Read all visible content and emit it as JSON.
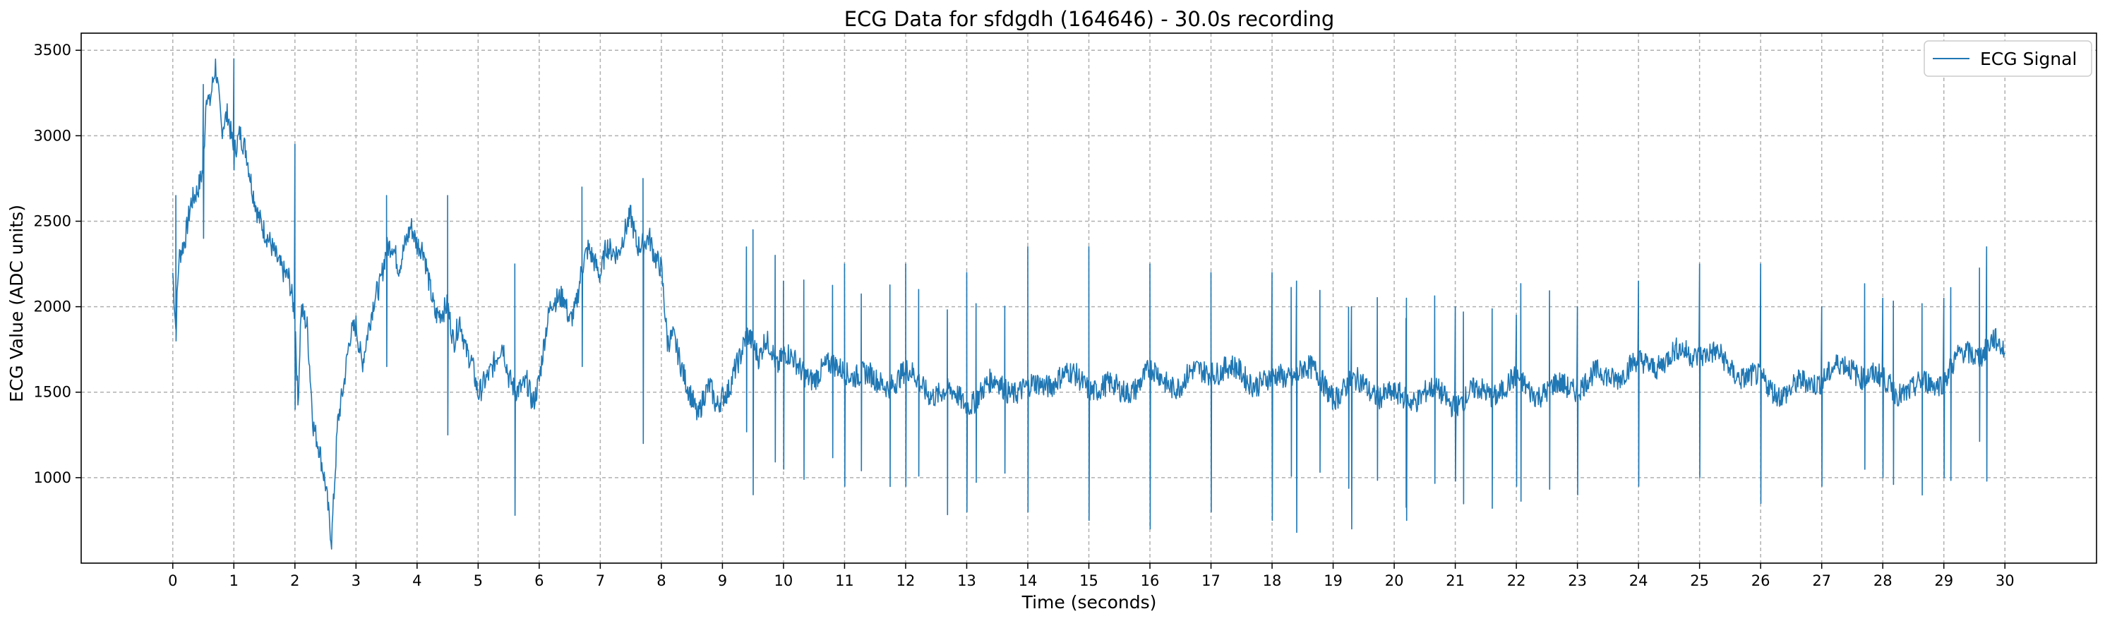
{
  "chart_data": {
    "type": "line",
    "title": "ECG Data for sfdgdh (164646) - 30.0s recording",
    "xlabel": "Time (seconds)",
    "ylabel": "ECG Value (ADC units)",
    "xlim": [
      -1.5,
      31.5
    ],
    "ylim": [
      500,
      3600
    ],
    "x_ticks": [
      0,
      1,
      2,
      3,
      4,
      5,
      6,
      7,
      8,
      9,
      10,
      11,
      12,
      13,
      14,
      15,
      16,
      17,
      18,
      19,
      20,
      21,
      22,
      23,
      24,
      25,
      26,
      27,
      28,
      29,
      30
    ],
    "y_ticks": [
      1000,
      1500,
      2000,
      2500,
      3000,
      3500
    ],
    "grid": true,
    "legend_position": "top-right",
    "series": [
      {
        "name": "ECG Signal",
        "color": "#1f77b4",
        "x": [
          0,
          0.05,
          0.1,
          0.2,
          0.3,
          0.4,
          0.5,
          0.55,
          0.6,
          0.7,
          0.8,
          0.9,
          1.0,
          1.1,
          1.2,
          1.3,
          1.4,
          1.5,
          1.6,
          1.7,
          1.8,
          1.9,
          2.0,
          2.05,
          2.1,
          2.2,
          2.3,
          2.4,
          2.5,
          2.6,
          2.7,
          2.8,
          2.9,
          3.0,
          3.1,
          3.2,
          3.3,
          3.4,
          3.5,
          3.6,
          3.7,
          3.8,
          3.9,
          4.0,
          4.1,
          4.2,
          4.3,
          4.4,
          4.5,
          4.6,
          4.7,
          4.8,
          4.9,
          5.0,
          5.1,
          5.2,
          5.3,
          5.4,
          5.5,
          5.6,
          5.7,
          5.8,
          5.9,
          6.0,
          6.1,
          6.2,
          6.3,
          6.4,
          6.5,
          6.6,
          6.7,
          6.8,
          6.9,
          7.0,
          7.1,
          7.2,
          7.3,
          7.4,
          7.5,
          7.6,
          7.7,
          7.8,
          7.9,
          8.0,
          8.1,
          8.2,
          8.3,
          8.4,
          8.5,
          8.6,
          8.7,
          8.8,
          8.9,
          9.0,
          9.1,
          9.2,
          9.3,
          9.4,
          9.5,
          9.6,
          9.7,
          9.8,
          9.9,
          10.0,
          10.5,
          11.0,
          11.5,
          12.0,
          12.5,
          13.0,
          13.5,
          14.0,
          14.5,
          15.0,
          15.5,
          16.0,
          16.5,
          17.0,
          17.5,
          18.0,
          18.5,
          19.0,
          19.5,
          20.0,
          20.5,
          21.0,
          21.5,
          22.0,
          22.5,
          23.0,
          23.5,
          24.0,
          24.5,
          25.0,
          25.5,
          26.0,
          26.5,
          27.0,
          27.5,
          28.0,
          28.5,
          29.0,
          29.3,
          29.6,
          29.8,
          30.0
        ],
        "values": [
          2200,
          1850,
          2250,
          2350,
          2600,
          2700,
          2850,
          3300,
          3200,
          3400,
          3000,
          3100,
          2900,
          3050,
          2950,
          2700,
          2500,
          2400,
          2350,
          2300,
          2250,
          2200,
          1950,
          1400,
          1950,
          1850,
          1300,
          1200,
          1000,
          650,
          1300,
          1500,
          1800,
          1900,
          1700,
          1900,
          2050,
          2100,
          2300,
          2350,
          2250,
          2400,
          2500,
          2350,
          2300,
          2100,
          1950,
          2000,
          2050,
          1800,
          1900,
          1700,
          1650,
          1500,
          1600,
          1650,
          1700,
          1750,
          1550,
          1500,
          1550,
          1600,
          1450,
          1550,
          1800,
          2000,
          2050,
          2100,
          1950,
          2000,
          2200,
          2300,
          2250,
          2200,
          2400,
          2350,
          2300,
          2400,
          2500,
          2350,
          2400,
          2450,
          2300,
          2200,
          1750,
          1800,
          1700,
          1600,
          1500,
          1350,
          1450,
          1500,
          1400,
          1500,
          1550,
          1650,
          1700,
          1800,
          1750,
          1700,
          1850,
          1800,
          1650,
          1700,
          1600,
          1650,
          1550,
          1600,
          1500,
          1450,
          1550,
          1500,
          1600,
          1550,
          1500,
          1600,
          1550,
          1650,
          1600,
          1550,
          1650,
          1500,
          1550,
          1450,
          1500,
          1450,
          1500,
          1550,
          1500,
          1550,
          1600,
          1650,
          1700,
          1750,
          1650,
          1550,
          1500,
          1600,
          1650,
          1550,
          1500,
          1600,
          1700,
          1750,
          1800,
          1700
        ]
      }
    ],
    "spikes": {
      "note_x": [
        0.05,
        0.5,
        1.0,
        2.0,
        3.5,
        4.5,
        5.6,
        6.7,
        7.7,
        9.5,
        10.0,
        11.0,
        12.0,
        13.0,
        14.0,
        15.0,
        16.0,
        17.0,
        18.0,
        18.4,
        19.3,
        20.2,
        21.0,
        22.0,
        23.0,
        24.0,
        25.0,
        26.0,
        27.0,
        28.0,
        29.0,
        29.7
      ],
      "note_high": [
        2650,
        3300,
        3450,
        2950,
        2650,
        2650,
        2250,
        2700,
        2750,
        2450,
        2150,
        2250,
        2250,
        2200,
        2350,
        2350,
        2250,
        2200,
        2200,
        2150,
        2000,
        2050,
        2000,
        1950,
        2000,
        2150,
        2250,
        2250,
        2000,
        2050,
        2050,
        2350
      ],
      "note_low": [
        1800,
        2400,
        2800,
        1400,
        1650,
        1250,
        780,
        1650,
        1200,
        900,
        1050,
        950,
        950,
        800,
        800,
        750,
        700,
        800,
        750,
        680,
        700,
        750,
        980,
        950,
        900,
        950,
        1000,
        850,
        950,
        1000,
        1000,
        980
      ]
    }
  },
  "legend": {
    "label": "ECG Signal"
  }
}
